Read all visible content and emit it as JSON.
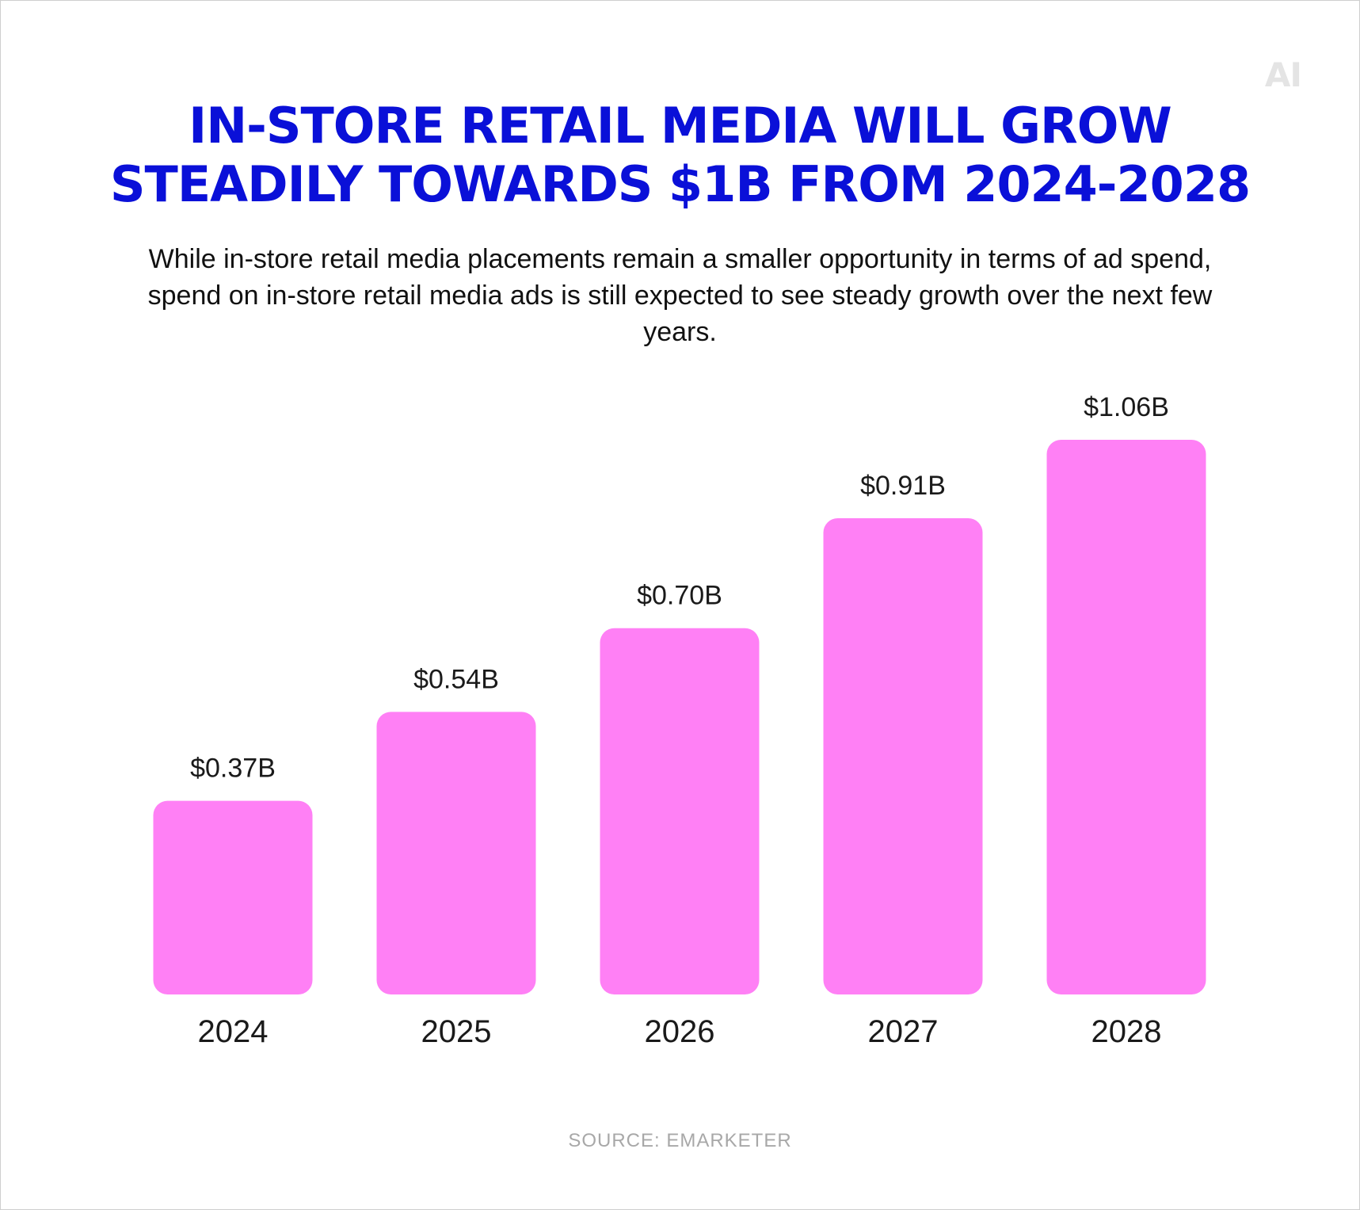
{
  "logo_text": "AI",
  "title_lines": [
    "IN-STORE RETAIL MEDIA WILL GROW",
    "STEADILY TOWARDS $1B FROM 2024-2028"
  ],
  "subtitle": "While in-store retail media placements remain a smaller opportunity in terms of ad spend, spend on in-store retail media ads is still expected to see steady growth over the next few years.",
  "source": "SOURCE: EMARKETER",
  "colors": {
    "title": "#0a10d8",
    "bar": "#ff80f5",
    "text": "#1a1a1a",
    "source": "#a8a8a8",
    "logo": "#e4e4e4"
  },
  "chart_data": {
    "type": "bar",
    "categories": [
      "2024",
      "2025",
      "2026",
      "2027",
      "2028"
    ],
    "values": [
      0.37,
      0.54,
      0.7,
      0.91,
      1.06
    ],
    "value_labels": [
      "$0.37B",
      "$0.54B",
      "$0.70B",
      "$0.91B",
      "$1.06B"
    ],
    "title": "IN-STORE RETAIL MEDIA WILL GROW STEADILY TOWARDS $1B FROM 2024-2028",
    "xlabel": "",
    "ylabel": "",
    "grid": false,
    "legend": "none"
  }
}
